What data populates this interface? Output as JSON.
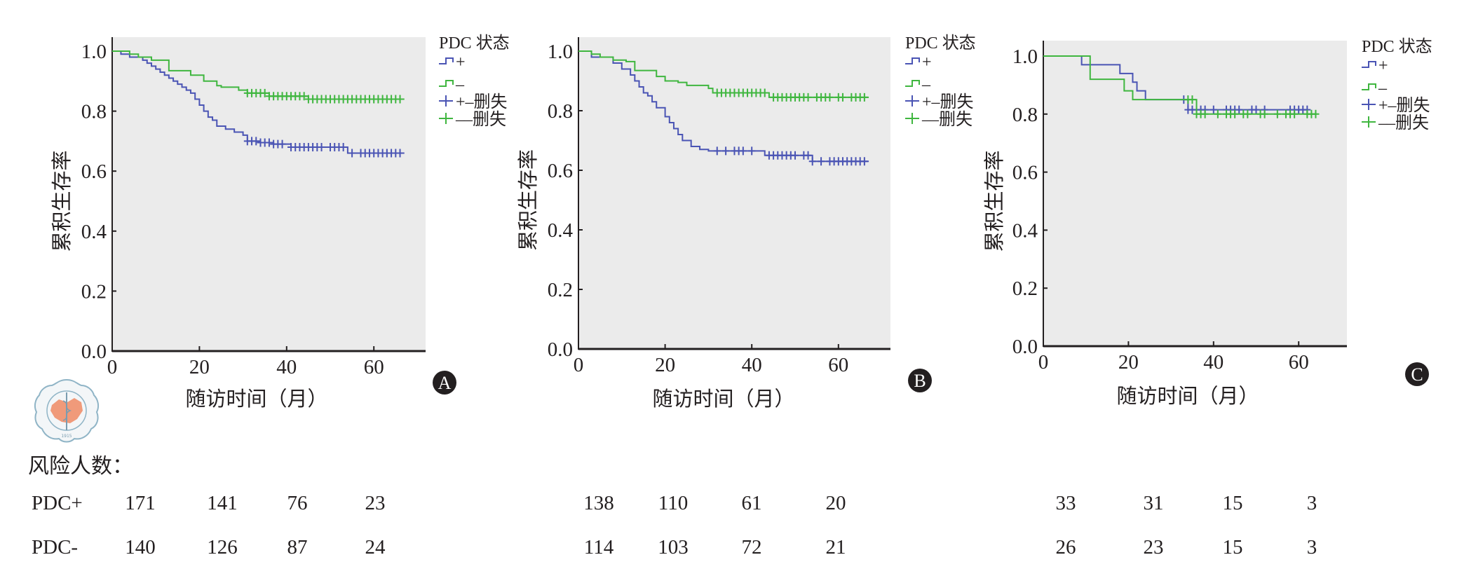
{
  "colors": {
    "pdc_positive": "#4a54b4",
    "pdc_negative": "#3fb63f",
    "plot_background": "#ebebeb",
    "axis": "#231f20"
  },
  "chart_data": [
    {
      "panel": "A",
      "type": "line",
      "step": "post",
      "ylabel": "累积生存率",
      "xlabel": "随访时间（月）",
      "xlim": [
        0,
        72
      ],
      "ylim": [
        0,
        1.0
      ],
      "xticks": [
        "0",
        "20",
        "40",
        "60"
      ],
      "yticks": [
        "0.0",
        "0.2",
        "0.4",
        "0.6",
        "0.8",
        "1.0"
      ],
      "legend": {
        "title": "PDC 状态",
        "placement": "right",
        "entries": [
          "+",
          "–",
          "+–删失",
          "––删失"
        ]
      },
      "series": [
        {
          "name": "+",
          "x": [
            0,
            2,
            4,
            6,
            7,
            8,
            9,
            10,
            11,
            12,
            13,
            14,
            15,
            16,
            17,
            18,
            19,
            20,
            21,
            22,
            23,
            24,
            26,
            28,
            30,
            31,
            34,
            37,
            41,
            54,
            67
          ],
          "y": [
            1.0,
            0.99,
            0.98,
            0.98,
            0.97,
            0.96,
            0.95,
            0.94,
            0.93,
            0.92,
            0.91,
            0.9,
            0.89,
            0.88,
            0.87,
            0.86,
            0.84,
            0.82,
            0.8,
            0.78,
            0.77,
            0.75,
            0.74,
            0.73,
            0.72,
            0.7,
            0.695,
            0.69,
            0.68,
            0.66,
            0.66
          ],
          "censored": [
            31,
            32,
            33,
            34,
            35,
            36,
            37,
            38,
            39,
            41,
            42,
            43,
            44,
            45,
            46,
            47,
            48,
            50,
            51,
            52,
            53,
            55,
            57,
            58,
            59,
            60,
            61,
            62,
            63,
            64,
            65,
            66
          ]
        },
        {
          "name": "–",
          "x": [
            0,
            4,
            6,
            9,
            13,
            18,
            21,
            24,
            25,
            29,
            31,
            36,
            45,
            67
          ],
          "y": [
            1.0,
            0.99,
            0.98,
            0.97,
            0.935,
            0.92,
            0.9,
            0.885,
            0.88,
            0.87,
            0.86,
            0.85,
            0.84,
            0.84
          ],
          "censored": [
            31,
            32,
            33,
            34,
            35,
            36,
            37,
            38,
            39,
            40,
            41,
            42,
            43,
            44,
            45,
            46,
            47,
            48,
            49,
            50,
            51,
            52,
            53,
            54,
            55,
            56,
            57,
            58,
            59,
            60,
            61,
            62,
            63,
            64,
            65,
            66
          ]
        }
      ],
      "risk_table": {
        "PDC+": [
          171,
          141,
          76,
          23
        ],
        "PDC-": [
          140,
          126,
          87,
          24
        ]
      },
      "panel_label": "A"
    },
    {
      "panel": "B",
      "type": "line",
      "step": "post",
      "ylabel": "累积生存率",
      "xlabel": "随访时间（月）",
      "xlim": [
        0,
        72
      ],
      "ylim": [
        0,
        1.0
      ],
      "xticks": [
        "0",
        "20",
        "40",
        "60"
      ],
      "yticks": [
        "0.0",
        "0.2",
        "0.4",
        "0.6",
        "0.8",
        "1.0"
      ],
      "legend": {
        "title": "PDC 状态",
        "placement": "right",
        "entries": [
          "+",
          "–",
          "+–删失",
          "––删失"
        ]
      },
      "series": [
        {
          "name": "+",
          "x": [
            0,
            3,
            5,
            8,
            10,
            12,
            13,
            14,
            15,
            16,
            17,
            18,
            20,
            21,
            22,
            23,
            24,
            26,
            28,
            30,
            31,
            43,
            54,
            67
          ],
          "y": [
            1.0,
            0.98,
            0.98,
            0.96,
            0.94,
            0.92,
            0.9,
            0.88,
            0.86,
            0.85,
            0.83,
            0.81,
            0.78,
            0.76,
            0.74,
            0.72,
            0.7,
            0.68,
            0.67,
            0.665,
            0.665,
            0.65,
            0.63,
            0.63
          ],
          "censored": [
            32,
            34,
            36,
            37,
            38,
            40,
            44,
            45,
            46,
            47,
            48,
            49,
            50,
            52,
            53,
            54,
            56,
            58,
            59,
            60,
            61,
            62,
            63,
            64,
            65,
            66
          ]
        },
        {
          "name": "–",
          "x": [
            0,
            3,
            5,
            8,
            11,
            13,
            18,
            20,
            23,
            25,
            30,
            31,
            44,
            67
          ],
          "y": [
            1.0,
            0.99,
            0.98,
            0.97,
            0.965,
            0.935,
            0.915,
            0.9,
            0.895,
            0.885,
            0.875,
            0.86,
            0.845,
            0.845
          ],
          "censored": [
            32,
            33,
            34,
            35,
            36,
            37,
            38,
            39,
            40,
            41,
            42,
            43,
            45,
            46,
            47,
            48,
            49,
            50,
            51,
            52,
            53,
            55,
            56,
            57,
            58,
            60,
            61,
            63,
            64,
            65,
            66
          ]
        }
      ],
      "risk_table": {
        "PDC+": [
          138,
          110,
          61,
          20
        ],
        "PDC-": [
          114,
          103,
          72,
          21
        ]
      },
      "panel_label": "B"
    },
    {
      "panel": "C",
      "type": "line",
      "step": "post",
      "ylabel": "累积生存率",
      "xlabel": "随访时间（月）",
      "xlim": [
        0,
        72
      ],
      "ylim": [
        0,
        1.0
      ],
      "xticks": [
        "0",
        "20",
        "40",
        "60"
      ],
      "yticks": [
        "0.0",
        "0.2",
        "0.4",
        "0.6",
        "0.8",
        "1.0"
      ],
      "legend": {
        "title": "PDC 状态",
        "placement": "right",
        "entries": [
          "+",
          "–",
          "+–删失",
          "––删失"
        ]
      },
      "series": [
        {
          "name": "+",
          "x": [
            0,
            9,
            18,
            21,
            22,
            24,
            34,
            62
          ],
          "y": [
            1.0,
            0.97,
            0.94,
            0.91,
            0.88,
            0.85,
            0.815,
            0.815
          ],
          "censored": [
            33,
            34,
            35,
            36,
            37,
            38,
            40,
            43,
            44,
            45,
            46,
            49,
            50,
            52,
            58,
            59,
            60,
            61,
            62
          ]
        },
        {
          "name": "–",
          "x": [
            0,
            11,
            19,
            21,
            36,
            64
          ],
          "y": [
            1.0,
            0.92,
            0.88,
            0.85,
            0.8,
            0.8
          ],
          "censored": [
            34,
            35,
            36,
            37,
            38,
            41,
            43,
            44,
            45,
            47,
            48,
            51,
            52,
            55,
            57,
            58,
            59,
            62,
            63,
            64
          ]
        }
      ],
      "risk_table": {
        "PDC+": [
          33,
          31,
          15,
          3
        ],
        "PDC-": [
          26,
          23,
          15,
          3
        ]
      },
      "panel_label": "C"
    }
  ],
  "risk_table": {
    "title": "风险人数：",
    "row_labels": [
      "PDC+",
      "PDC-"
    ]
  },
  "logo": {
    "text": "中华医学会 CHINESE MEDICAL ASSOCIATION 1915"
  }
}
